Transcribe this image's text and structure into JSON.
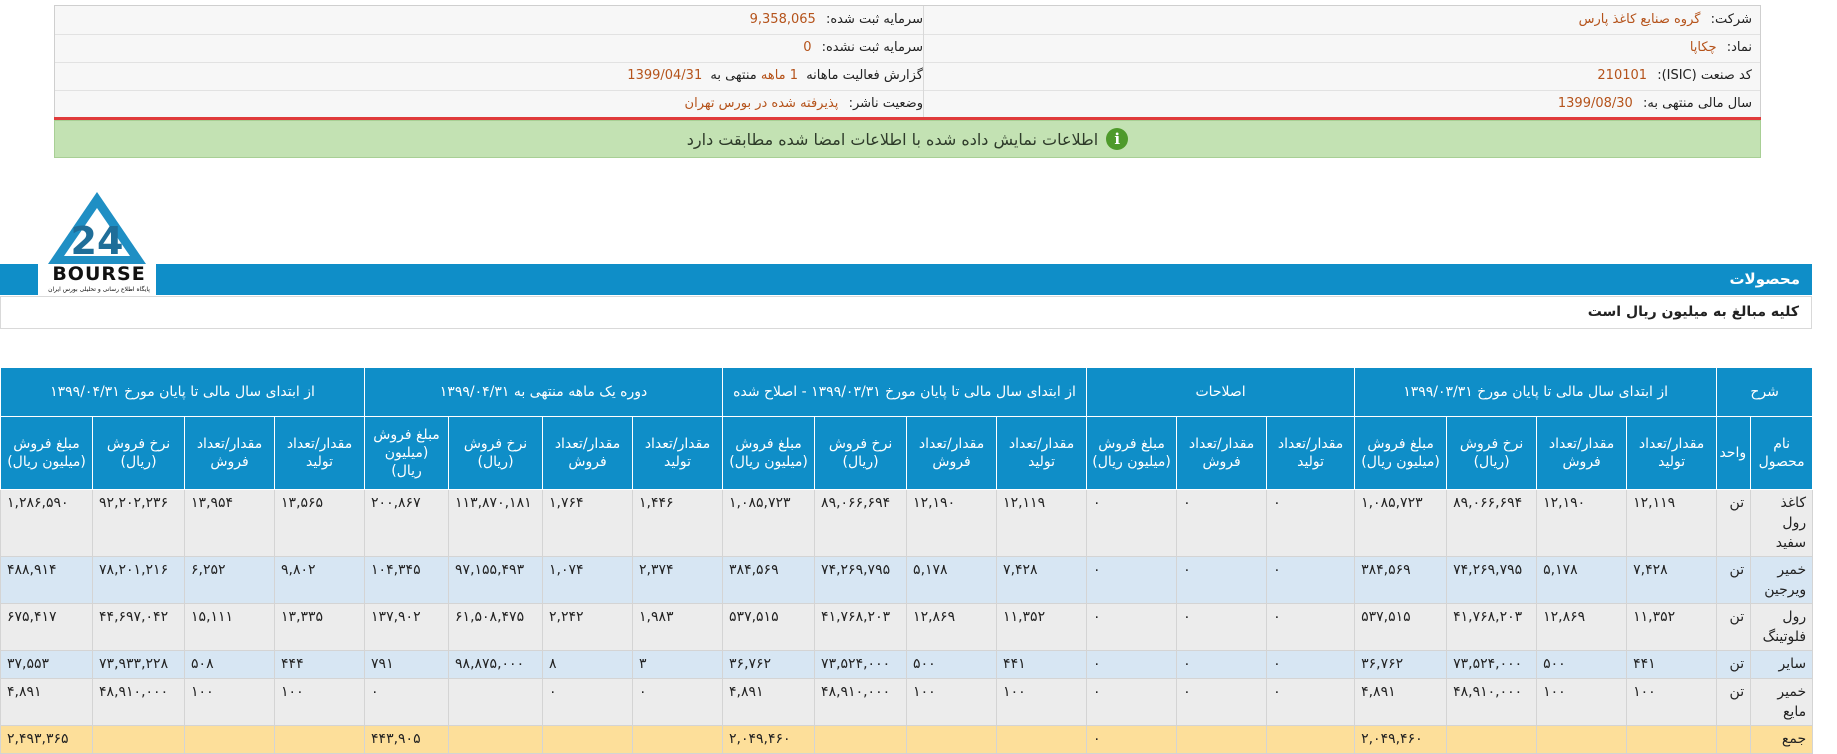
{
  "info": {
    "company_label": "شرکت:",
    "company_value": "گروه صنایع کاغذ پارس",
    "symbol_label": "نماد:",
    "symbol_value": "چکاپا",
    "isic_label": "کد صنعت (ISIC):",
    "isic_value": "210101",
    "fiscal_label": "سال مالی منتهی به:",
    "fiscal_value": "1399/08/30",
    "capital_reg_label": "سرمایه ثبت شده:",
    "capital_reg_value": "9,358,065",
    "capital_unreg_label": "سرمایه ثبت نشده:",
    "capital_unreg_value": "0",
    "report_label": "گزارش فعالیت ماهانه",
    "report_months": "1 ماهه",
    "report_to": "منتهی به",
    "report_date": "1399/04/31",
    "status_label": "وضعیت ناشر:",
    "status_value": "پذیرفته شده در بورس تهران"
  },
  "notice": {
    "icon": "info-icon",
    "text": "اطلاعات نمایش داده شده با اطلاعات امضا شده مطابقت دارد"
  },
  "logo": {
    "word": "BOURSE",
    "subtitle": "پایگاه اطلاع رسانی و تحلیلی بورس ایران"
  },
  "section": {
    "title": "محصولات",
    "unit_note": "کلیه مبالغ به میلیون ریال است"
  },
  "table": {
    "group_headers": [
      "شرح",
      "از ابتدای سال مالی تا پایان مورخ ۱۳۹۹/۰۳/۳۱",
      "اصلاحات",
      "از ابتدای سال مالی تا پایان مورخ ۱۳۹۹/۰۳/۳۱ - اصلاح شده",
      "دوره یک ماهه منتهی به ۱۳۹۹/۰۴/۳۱",
      "از ابتدای سال مالی تا پایان مورخ ۱۳۹۹/۰۴/۳۱"
    ],
    "col_headers": {
      "name": "نام محصول",
      "unit": "واحد",
      "prod_qty": "مقدار/تعداد تولید",
      "sale_qty": "مقدار/تعداد فروش",
      "sale_rate": "نرخ فروش (ریال)",
      "sale_amount": "مبلغ فروش (میلیون ریال)"
    },
    "rows": [
      {
        "name": "کاغذ رول سفید",
        "unit": "تن",
        "cells": [
          "۱۲,۱۱۹",
          "۱۲,۱۹۰",
          "۸۹,۰۶۶,۶۹۴",
          "۱,۰۸۵,۷۲۳",
          "۰",
          "۰",
          "۰",
          "۱۲,۱۱۹",
          "۱۲,۱۹۰",
          "۸۹,۰۶۶,۶۹۴",
          "۱,۰۸۵,۷۲۳",
          "۱,۴۴۶",
          "۱,۷۶۴",
          "۱۱۳,۸۷۰,۱۸۱",
          "۲۰۰,۸۶۷",
          "۱۳,۵۶۵",
          "۱۳,۹۵۴",
          "۹۲,۲۰۲,۲۳۶",
          "۱,۲۸۶,۵۹۰"
        ]
      },
      {
        "name": "خمیر ویرجین",
        "unit": "تن",
        "cells": [
          "۷,۴۲۸",
          "۵,۱۷۸",
          "۷۴,۲۶۹,۷۹۵",
          "۳۸۴,۵۶۹",
          "۰",
          "۰",
          "۰",
          "۷,۴۲۸",
          "۵,۱۷۸",
          "۷۴,۲۶۹,۷۹۵",
          "۳۸۴,۵۶۹",
          "۲,۳۷۴",
          "۱,۰۷۴",
          "۹۷,۱۵۵,۴۹۳",
          "۱۰۴,۳۴۵",
          "۹,۸۰۲",
          "۶,۲۵۲",
          "۷۸,۲۰۱,۲۱۶",
          "۴۸۸,۹۱۴"
        ]
      },
      {
        "name": "رول فلوتینگ",
        "unit": "تن",
        "cells": [
          "۱۱,۳۵۲",
          "۱۲,۸۶۹",
          "۴۱,۷۶۸,۲۰۳",
          "۵۳۷,۵۱۵",
          "۰",
          "۰",
          "۰",
          "۱۱,۳۵۲",
          "۱۲,۸۶۹",
          "۴۱,۷۶۸,۲۰۳",
          "۵۳۷,۵۱۵",
          "۱,۹۸۳",
          "۲,۲۴۲",
          "۶۱,۵۰۸,۴۷۵",
          "۱۳۷,۹۰۲",
          "۱۳,۳۳۵",
          "۱۵,۱۱۱",
          "۴۴,۶۹۷,۰۴۲",
          "۶۷۵,۴۱۷"
        ]
      },
      {
        "name": "سایر",
        "unit": "تن",
        "cells": [
          "۴۴۱",
          "۵۰۰",
          "۷۳,۵۲۴,۰۰۰",
          "۳۶,۷۶۲",
          "۰",
          "۰",
          "۰",
          "۴۴۱",
          "۵۰۰",
          "۷۳,۵۲۴,۰۰۰",
          "۳۶,۷۶۲",
          "۳",
          "۸",
          "۹۸,۸۷۵,۰۰۰",
          "۷۹۱",
          "۴۴۴",
          "۵۰۸",
          "۷۳,۹۳۳,۲۲۸",
          "۳۷,۵۵۳"
        ]
      },
      {
        "name": "خمیر مایع",
        "unit": "تن",
        "cells": [
          "۱۰۰",
          "۱۰۰",
          "۴۸,۹۱۰,۰۰۰",
          "۴,۸۹۱",
          "۰",
          "۰",
          "۰",
          "۱۰۰",
          "۱۰۰",
          "۴۸,۹۱۰,۰۰۰",
          "۴,۸۹۱",
          "۰",
          "۰",
          "",
          "۰",
          "۱۰۰",
          "۱۰۰",
          "۴۸,۹۱۰,۰۰۰",
          "۴,۸۹۱"
        ]
      }
    ],
    "total": {
      "name": "جمع",
      "cells": [
        "",
        "",
        "",
        "۲,۰۴۹,۴۶۰",
        "",
        "",
        "۰",
        "",
        "",
        "",
        "۲,۰۴۹,۴۶۰",
        "",
        "",
        "",
        "۴۴۳,۹۰۵",
        "",
        "",
        "",
        "۲,۴۹۳,۳۶۵"
      ]
    }
  }
}
